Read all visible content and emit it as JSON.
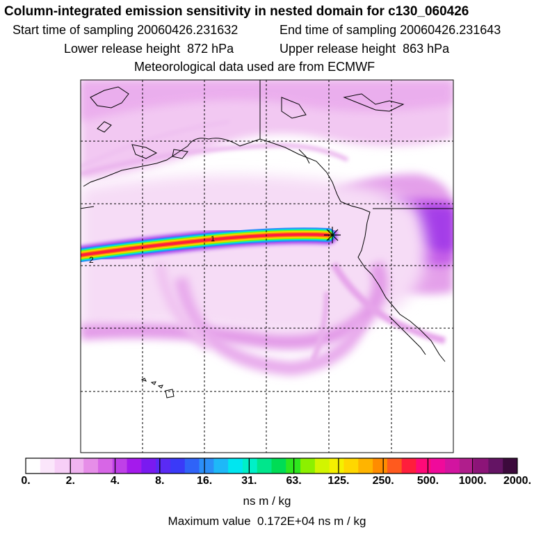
{
  "header": {
    "title": "Column-integrated emission sensitivity in nested domain for c130_060426",
    "start_label": "Start time of sampling",
    "start_value": "20060426.231632",
    "end_label": "End time of sampling",
    "end_value": "20060426.231643",
    "lower_label": "Lower release height",
    "lower_value": "872 hPa",
    "upper_label": "Upper release height",
    "upper_value": "863 hPa",
    "met_line": "Meteorological data used are from ECMWF"
  },
  "map": {
    "release_marker": "asterisk-release-point",
    "trajectory_labels": [
      "1",
      "2"
    ]
  },
  "colorbar": {
    "colors": [
      "#ffffff",
      "#fbe6fb",
      "#f7cff7",
      "#f0b4f0",
      "#e68ee8",
      "#d766e6",
      "#bf40e8",
      "#a41aec",
      "#7a1af0",
      "#5a2af4",
      "#3a3af8",
      "#2f63f8",
      "#2b8ff8",
      "#1eb8f8",
      "#00e6f0",
      "#00f0c8",
      "#00e68c",
      "#00dc55",
      "#2ee61e",
      "#8cf000",
      "#d2f500",
      "#f5f000",
      "#ffd700",
      "#ffb400",
      "#ff8c00",
      "#ff5a1e",
      "#ff1e3c",
      "#ff0a78",
      "#f00a9b",
      "#d214a0",
      "#b01e8c",
      "#8c1478",
      "#641464",
      "#3c0a3c"
    ],
    "tick_labels": [
      "0.",
      "2.",
      "4.",
      "8.",
      "16.",
      "31.",
      "63.",
      "125.",
      "250.",
      "500.",
      "1000.",
      "2000."
    ],
    "units": "ns m / kg",
    "max_label": "Maximum value",
    "max_value": "0.172E+04 ns m / kg"
  }
}
